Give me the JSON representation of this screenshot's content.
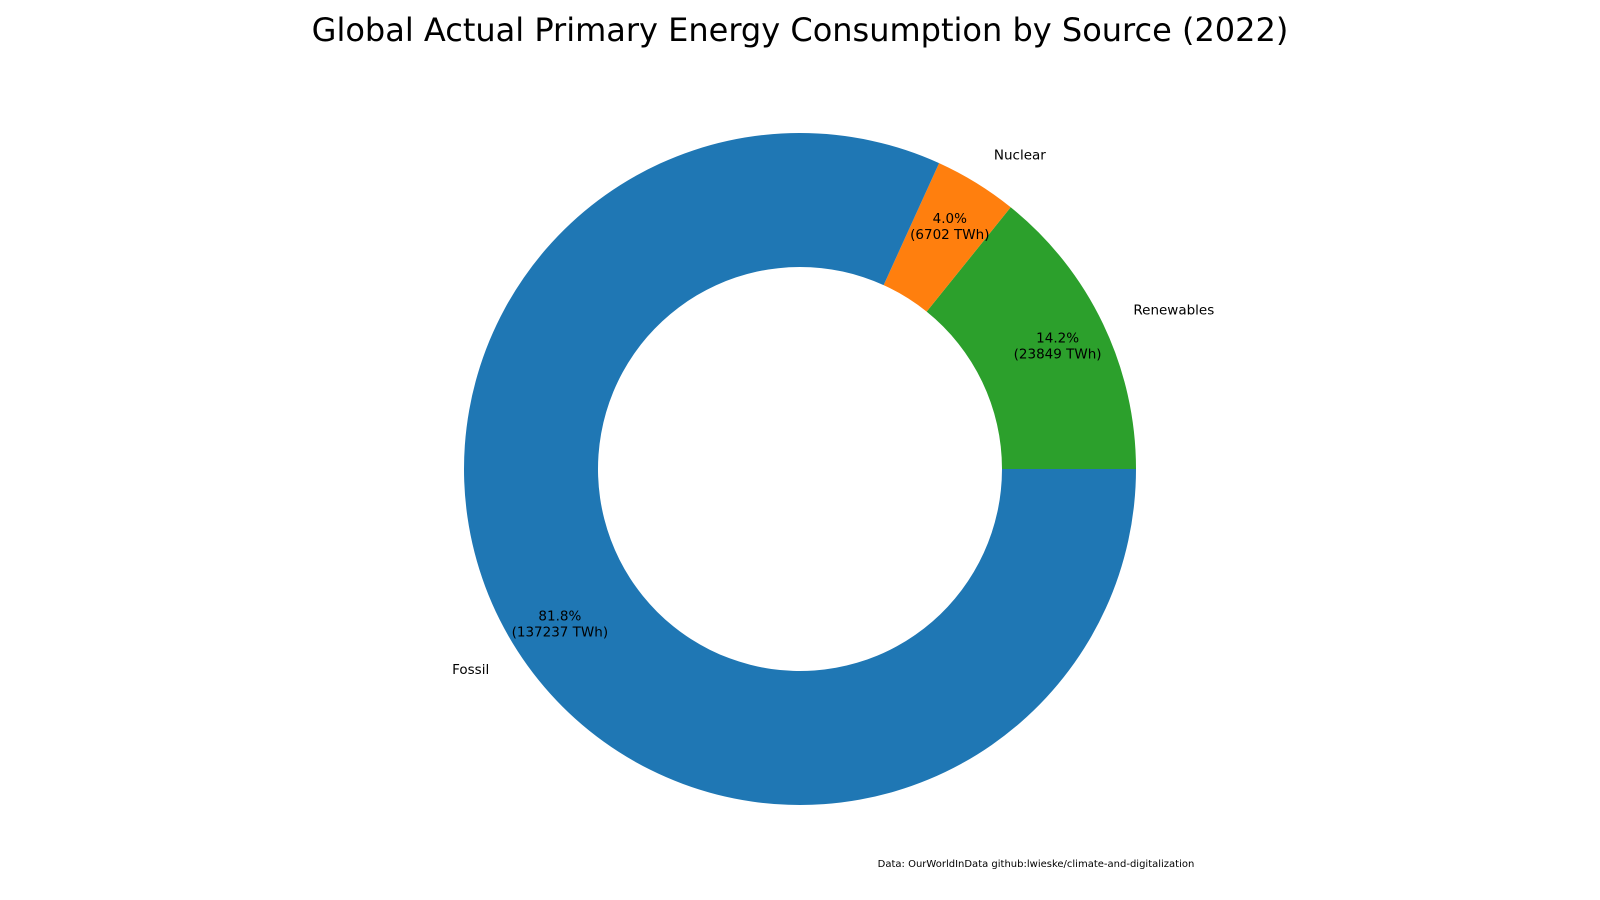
{
  "chart_data": {
    "type": "pie",
    "donut": true,
    "title": "Global Actual Primary Energy Consumption by Source (2022)",
    "slices": [
      {
        "label": "Renewables",
        "value": 23849,
        "percent_label": "14.2%",
        "value_label": "(23849 TWh)",
        "color": "#2ca02c"
      },
      {
        "label": "Nuclear",
        "value": 6702,
        "percent_label": "4.0%",
        "value_label": "(6702 TWh)",
        "color": "#ff7f0e"
      },
      {
        "label": "Fossil",
        "value": 137237,
        "percent_label": "81.8%",
        "value_label": "(137237 TWh)",
        "color": "#1f77b4"
      }
    ],
    "footer": "Data: OurWorldInData   github:lwieske/climate-and-digitalization"
  }
}
